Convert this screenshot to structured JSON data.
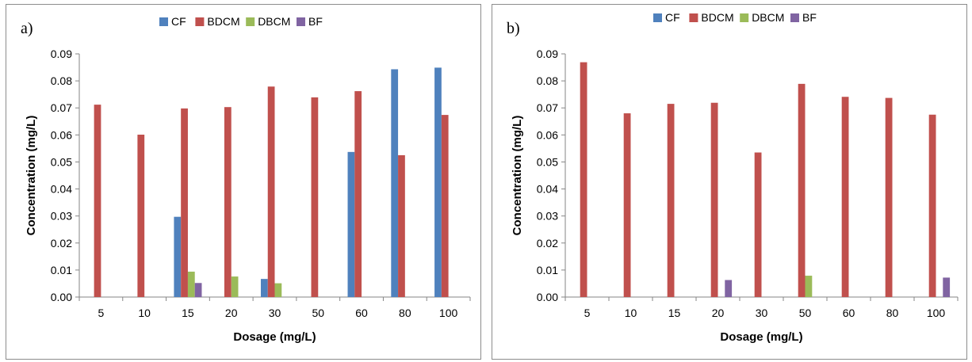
{
  "chart_data": [
    {
      "type": "bar",
      "panel_label": "a)",
      "categories": [
        "5",
        "10",
        "15",
        "20",
        "30",
        "50",
        "60",
        "80",
        "100"
      ],
      "series": [
        {
          "name": "CF",
          "color": "#4f81bd",
          "values": [
            0,
            0,
            0.0297,
            0,
            0.0067,
            0,
            0.0537,
            0.0843,
            0.0849
          ]
        },
        {
          "name": "BDCM",
          "color": "#c0504d",
          "values": [
            0.0712,
            0.0601,
            0.0698,
            0.0703,
            0.0779,
            0.0739,
            0.0762,
            0.0525,
            0.0674
          ]
        },
        {
          "name": "DBCM",
          "color": "#9bbb59",
          "values": [
            0,
            0,
            0.0094,
            0.0076,
            0.0051,
            0,
            0,
            0,
            0
          ]
        },
        {
          "name": "BF",
          "color": "#8064a2",
          "values": [
            0,
            0,
            0.0052,
            0,
            0,
            0,
            0,
            0,
            0
          ]
        }
      ],
      "xlabel": "Dosage (mg/L)",
      "ylabel": "Concentration (mg/L)",
      "ylim": [
        0,
        0.09
      ],
      "yticks": [
        "0.00",
        "0.01",
        "0.02",
        "0.03",
        "0.04",
        "0.05",
        "0.06",
        "0.07",
        "0.08",
        "0.09"
      ],
      "grid": false,
      "legend_position": "top"
    },
    {
      "type": "bar",
      "panel_label": "b)",
      "categories": [
        "5",
        "10",
        "15",
        "20",
        "30",
        "50",
        "60",
        "80",
        "100"
      ],
      "series": [
        {
          "name": "CF",
          "color": "#4f81bd",
          "values": [
            0,
            0,
            0,
            0,
            0,
            0,
            0,
            0,
            0
          ]
        },
        {
          "name": "BDCM",
          "color": "#c0504d",
          "values": [
            0.0869,
            0.068,
            0.0715,
            0.0719,
            0.0535,
            0.0789,
            0.0741,
            0.0737,
            0.0675
          ]
        },
        {
          "name": "DBCM",
          "color": "#9bbb59",
          "values": [
            0,
            0,
            0,
            0,
            0,
            0.0079,
            0,
            0,
            0
          ]
        },
        {
          "name": "BF",
          "color": "#8064a2",
          "values": [
            0,
            0,
            0,
            0.0063,
            0,
            0,
            0,
            0,
            0.0072
          ]
        }
      ],
      "xlabel": "Dosage (mg/L)",
      "ylabel": "Concentration (mg/L)",
      "ylim": [
        0,
        0.09
      ],
      "yticks": [
        "0.00",
        "0.01",
        "0.02",
        "0.03",
        "0.04",
        "0.05",
        "0.06",
        "0.07",
        "0.08",
        "0.09"
      ],
      "grid": false,
      "legend_position": "top"
    }
  ]
}
